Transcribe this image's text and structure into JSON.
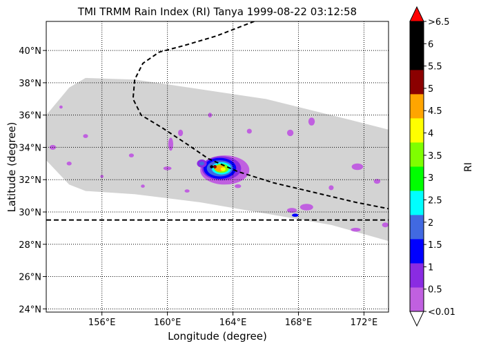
{
  "chart_data": {
    "type": "heatmap",
    "title": "TMI TRMM Rain Index (RI) Tanya 1999-08-22 03:12:58",
    "xlabel": "Longitude (degree)",
    "ylabel": "Latitude (degree)",
    "xlim": [
      152.6,
      173.5
    ],
    "ylim": [
      23.8,
      41.8
    ],
    "xticks": [
      156,
      160,
      164,
      168,
      172
    ],
    "xtick_labels": [
      "156°E",
      "160°E",
      "164°E",
      "168°E",
      "172°E"
    ],
    "yticks": [
      24,
      26,
      28,
      30,
      32,
      34,
      36,
      38,
      40
    ],
    "ytick_labels": [
      "24°N",
      "26°N",
      "28°N",
      "30°N",
      "32°N",
      "34°N",
      "36°N",
      "38°N",
      "40°N"
    ],
    "grid": "dotted",
    "swath": {
      "edge1": [
        [
          152.6,
          36.0
        ],
        [
          154,
          37.7
        ],
        [
          155,
          38.3
        ],
        [
          158,
          38.2
        ],
        [
          162,
          37.6
        ],
        [
          166,
          37.0
        ],
        [
          170,
          36.0
        ],
        [
          173.5,
          35.1
        ]
      ],
      "edge2": [
        [
          173.5,
          28.2
        ],
        [
          170,
          29.2
        ],
        [
          166,
          29.9
        ],
        [
          162,
          30.6
        ],
        [
          158,
          31.1
        ],
        [
          155,
          31.3
        ],
        [
          154,
          31.7
        ],
        [
          152.6,
          33.2
        ]
      ]
    },
    "track_curve": [
      [
        165.3,
        41.8
      ],
      [
        163,
        40.9
      ],
      [
        161,
        40.3
      ],
      [
        159.5,
        39.9
      ],
      [
        158.5,
        39.2
      ],
      [
        158,
        38.2
      ],
      [
        157.9,
        37.0
      ],
      [
        158.4,
        36.0
      ],
      [
        159.7,
        35.2
      ],
      [
        161.2,
        34.2
      ],
      [
        162.5,
        33.3
      ],
      [
        164.3,
        32.5
      ],
      [
        166.5,
        31.8
      ],
      [
        169,
        31.2
      ],
      [
        171.5,
        30.6
      ],
      [
        173.5,
        30.2
      ]
    ],
    "reference_lat": 29.5,
    "storm_center": [
      162.9,
      32.8
    ],
    "rain_cells": [
      {
        "lon": 163.5,
        "lat": 32.6,
        "rx": 1.5,
        "ry": 0.9,
        "class": 0
      },
      {
        "lon": 163.3,
        "lat": 32.7,
        "rx": 1.2,
        "ry": 0.75,
        "class": 1
      },
      {
        "lon": 163.2,
        "lat": 32.7,
        "rx": 1.0,
        "ry": 0.65,
        "class": 2
      },
      {
        "lon": 163.2,
        "lat": 32.7,
        "rx": 0.8,
        "ry": 0.5,
        "class": 3
      },
      {
        "lon": 163.3,
        "lat": 32.7,
        "rx": 0.6,
        "ry": 0.38,
        "class": 4
      },
      {
        "lon": 163.3,
        "lat": 32.7,
        "rx": 0.45,
        "ry": 0.28,
        "class": 6
      },
      {
        "lon": 163.2,
        "lat": 32.7,
        "rx": 0.3,
        "ry": 0.2,
        "class": 8
      },
      {
        "lon": 163.4,
        "lat": 32.65,
        "rx": 0.15,
        "ry": 0.12,
        "class": 7
      },
      {
        "lon": 162.7,
        "lat": 32.8,
        "rx": 0.1,
        "ry": 0.1,
        "class": 11
      },
      {
        "lon": 162.1,
        "lat": 33.0,
        "rx": 0.3,
        "ry": 0.25,
        "class": 1
      },
      {
        "lon": 162.1,
        "lat": 33.0,
        "rx": 0.15,
        "ry": 0.12,
        "class": 3
      },
      {
        "lon": 160.2,
        "lat": 34.2,
        "rx": 0.15,
        "ry": 0.4,
        "class": 0
      },
      {
        "lon": 160.8,
        "lat": 34.9,
        "rx": 0.15,
        "ry": 0.2,
        "class": 0
      },
      {
        "lon": 162.6,
        "lat": 36.0,
        "rx": 0.12,
        "ry": 0.15,
        "class": 0
      },
      {
        "lon": 160.0,
        "lat": 32.7,
        "rx": 0.25,
        "ry": 0.12,
        "class": 0
      },
      {
        "lon": 167.5,
        "lat": 34.9,
        "rx": 0.2,
        "ry": 0.2,
        "class": 0
      },
      {
        "lon": 168.8,
        "lat": 35.6,
        "rx": 0.2,
        "ry": 0.25,
        "class": 0
      },
      {
        "lon": 165.0,
        "lat": 35.0,
        "rx": 0.15,
        "ry": 0.15,
        "class": 0
      },
      {
        "lon": 167.6,
        "lat": 30.1,
        "rx": 0.3,
        "ry": 0.15,
        "class": 0
      },
      {
        "lon": 168.5,
        "lat": 30.3,
        "rx": 0.4,
        "ry": 0.2,
        "class": 0
      },
      {
        "lon": 167.8,
        "lat": 29.8,
        "rx": 0.2,
        "ry": 0.1,
        "class": 2
      },
      {
        "lon": 171.6,
        "lat": 32.8,
        "rx": 0.35,
        "ry": 0.2,
        "class": 0
      },
      {
        "lon": 172.8,
        "lat": 31.9,
        "rx": 0.2,
        "ry": 0.15,
        "class": 0
      },
      {
        "lon": 170.0,
        "lat": 31.5,
        "rx": 0.15,
        "ry": 0.15,
        "class": 0
      },
      {
        "lon": 171.5,
        "lat": 28.9,
        "rx": 0.3,
        "ry": 0.12,
        "class": 0
      },
      {
        "lon": 173.3,
        "lat": 29.2,
        "rx": 0.2,
        "ry": 0.15,
        "class": 0
      },
      {
        "lon": 153.0,
        "lat": 34.0,
        "rx": 0.2,
        "ry": 0.15,
        "class": 0
      },
      {
        "lon": 155.0,
        "lat": 34.7,
        "rx": 0.15,
        "ry": 0.12,
        "class": 0
      },
      {
        "lon": 154.0,
        "lat": 33.0,
        "rx": 0.15,
        "ry": 0.12,
        "class": 0
      },
      {
        "lon": 157.8,
        "lat": 33.5,
        "rx": 0.15,
        "ry": 0.12,
        "class": 0
      },
      {
        "lon": 153.5,
        "lat": 36.5,
        "rx": 0.1,
        "ry": 0.1,
        "class": 0
      },
      {
        "lon": 158.5,
        "lat": 31.6,
        "rx": 0.12,
        "ry": 0.1,
        "class": 0
      },
      {
        "lon": 161.2,
        "lat": 31.3,
        "rx": 0.15,
        "ry": 0.1,
        "class": 0
      },
      {
        "lon": 156.0,
        "lat": 32.2,
        "rx": 0.1,
        "ry": 0.1,
        "class": 0
      },
      {
        "lon": 164.3,
        "lat": 31.6,
        "rx": 0.2,
        "ry": 0.12,
        "class": 0
      }
    ],
    "colorbar": {
      "label": "RI",
      "colors": [
        "#c060e0",
        "#8a2be2",
        "#0000ff",
        "#4169e1",
        "#00ffff",
        "#00ff00",
        "#7fff00",
        "#ffff00",
        "#ffa500",
        "#8b0000",
        "#000000",
        "#000000"
      ],
      "under_color": "#ffffff",
      "over_color": "#ff0000",
      "tick_labels": [
        "<0.01",
        "0.5",
        "1",
        "1.5",
        "2",
        "2.5",
        "3",
        "3.5",
        "4",
        "4.5",
        "5",
        "5.5",
        "6",
        ">6.5"
      ]
    }
  }
}
